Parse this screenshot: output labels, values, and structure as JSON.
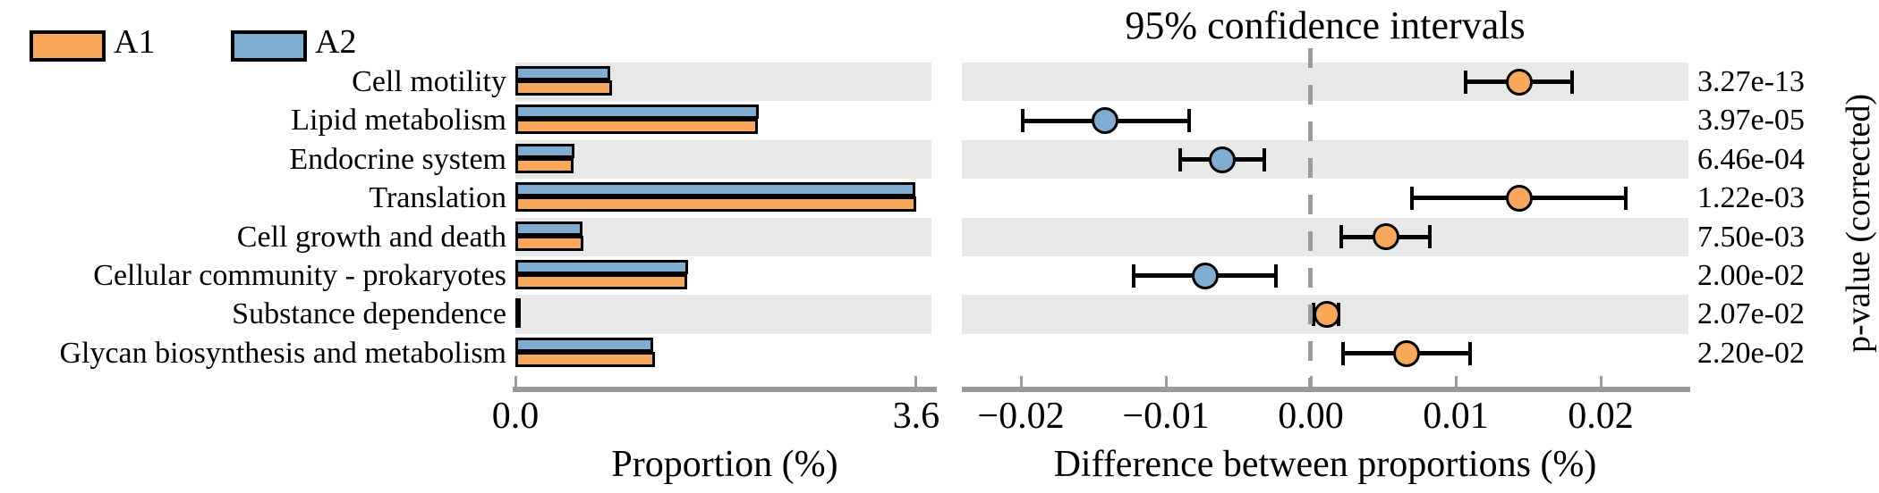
{
  "title": "95% confidence intervals",
  "legend": {
    "items": [
      {
        "label": "A1",
        "color": "#F9A75B"
      },
      {
        "label": "A2",
        "color": "#7EADD1"
      }
    ]
  },
  "colors": {
    "a1_orange": "#F9A75B",
    "a2_blue": "#7EADD1",
    "band_gray": "#E8E8E8",
    "axis_gray": "#9a9a9a",
    "marker_border": "#000000"
  },
  "chart_data": {
    "type": "bar",
    "subtype": "extended-error-bar (STAMP-style): grouped proportion bars + difference CI dot plot",
    "categories": [
      "Cell motility",
      "Lipid metabolism",
      "Endocrine system",
      "Translation",
      "Cell growth and death",
      "Cellular community - prokaryotes",
      "Substance dependence",
      "Glycan biosynthesis and metabolism"
    ],
    "series": [
      {
        "name": "A1",
        "color": "#F9A75B",
        "values": [
          0.87,
          2.18,
          0.52,
          3.6,
          0.61,
          1.54,
          0.04,
          1.25
        ]
      },
      {
        "name": "A2",
        "color": "#7EADD1",
        "values": [
          0.85,
          2.19,
          0.53,
          3.59,
          0.6,
          1.55,
          0.04,
          1.24
        ]
      }
    ],
    "proportion_axis": {
      "label": "Proportion (%)",
      "tick_values": [
        0.0,
        3.6
      ],
      "tick_labels": [
        "0.0",
        "3.6"
      ],
      "range": [
        0,
        3.74
      ]
    },
    "difference_panel": {
      "title": "95% confidence intervals",
      "label": "Difference between proportions (%)",
      "tick_values": [
        -0.02,
        -0.01,
        0.0,
        0.01,
        0.02
      ],
      "tick_labels": [
        "−0.02",
        "−0.01",
        "0.00",
        "0.01",
        "0.02"
      ],
      "range": [
        -0.024,
        0.026
      ],
      "zero_line": "dashed",
      "means": [
        0.0144,
        -0.0142,
        -0.0061,
        0.0144,
        0.0052,
        -0.0073,
        0.0011,
        0.0066
      ],
      "ci_low": [
        0.0107,
        -0.0199,
        -0.009,
        0.007,
        0.0021,
        -0.0122,
        0.0002,
        0.0022
      ],
      "ci_high": [
        0.018,
        -0.0084,
        -0.0032,
        0.0217,
        0.0082,
        -0.0024,
        0.0019,
        0.011
      ],
      "marker_series": [
        "A1",
        "A2",
        "A2",
        "A1",
        "A1",
        "A2",
        "A1",
        "A1"
      ]
    },
    "p_values": {
      "label": "p-value (corrected)",
      "values": [
        "3.27e-13",
        "3.97e-05",
        "6.46e-04",
        "1.22e-03",
        "7.50e-03",
        "2.00e-02",
        "2.07e-02",
        "2.20e-02"
      ]
    }
  }
}
